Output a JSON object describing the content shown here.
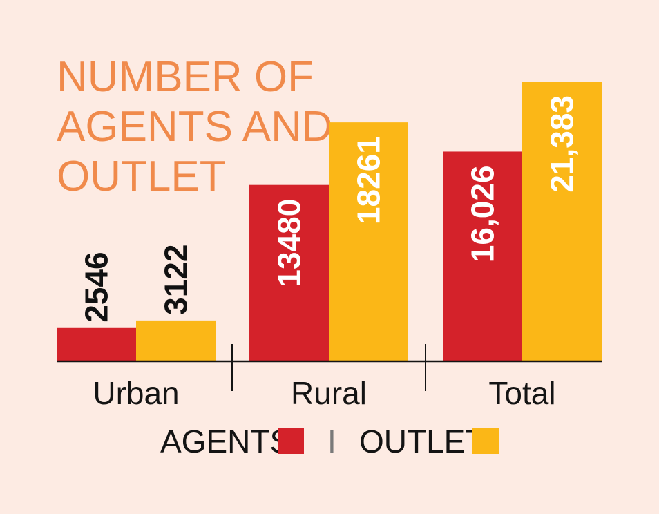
{
  "chart_data": {
    "type": "bar",
    "title_lines": [
      "NUMBER OF",
      "AGENTS AND",
      "OUTLET"
    ],
    "categories": [
      "Urban",
      "Rural",
      "Total"
    ],
    "series": [
      {
        "name": "AGENTS",
        "color": "#d4222a",
        "values": [
          2546,
          13480,
          16026
        ],
        "labels": [
          "2546",
          "13480",
          "16,026"
        ]
      },
      {
        "name": "OUTLET",
        "color": "#fbb717",
        "values": [
          3122,
          18261,
          21383
        ],
        "labels": [
          "3122",
          "18261",
          "21,383"
        ]
      }
    ],
    "legend_placement": "bottom-center",
    "legend_separator": "I",
    "ylim": [
      0,
      21383
    ],
    "grid": false
  }
}
